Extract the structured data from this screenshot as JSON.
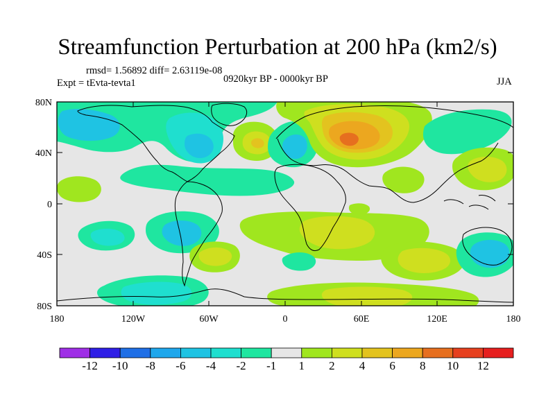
{
  "title": "Streamfunction Perturbation at 200 hPa (km2/s)",
  "stats_line": "rmsd= 1.56892 diff= 2.63119e-08",
  "experiment_line": "Expt = tEvta-tevta1",
  "period_line": "0920kyr BP - 0000kyr BP",
  "season": "JJA",
  "axes": {
    "lat_labels": [
      "80N",
      "40N",
      "0",
      "40S",
      "80S"
    ],
    "lon_labels": [
      "180",
      "120W",
      "60W",
      "0",
      "60E",
      "120E",
      "180"
    ]
  },
  "colorbar": {
    "labels": [
      "-12",
      "-10",
      "-8",
      "-6",
      "-4",
      "-2",
      "-1",
      "1",
      "2",
      "4",
      "6",
      "8",
      "10",
      "12"
    ],
    "colors": [
      "#9f2fe6",
      "#2f1fe6",
      "#1f6fe6",
      "#1fa7ec",
      "#1fc3e3",
      "#1fdfcf",
      "#1fe6a0",
      "#e6e6e6",
      "#a0e61f",
      "#cfdf1f",
      "#e3c31f",
      "#eca71f",
      "#e66f1f",
      "#e6401f",
      "#e61f1f"
    ]
  },
  "field_colors": {
    "ocean": "#e6e6e6",
    "green_neg": "#1fe6a0",
    "cyan_neg": "#1fdfcf",
    "blue_neg": "#1fc3e3",
    "lime_pos": "#a0e61f",
    "olive_pos": "#cfdf1f",
    "yellow_pos": "#e3c31f",
    "orange_pos": "#eca71f",
    "red_pos": "#e66f1f"
  },
  "map_data": {
    "type": "filled-contour",
    "projection": "cylindrical-equidistant",
    "lon_range": [
      -180,
      180
    ],
    "lat_range": [
      -90,
      90
    ],
    "level_breaks": [
      -12,
      -10,
      -8,
      -6,
      -4,
      -2,
      -1,
      1,
      2,
      4,
      6,
      8,
      10,
      12
    ]
  }
}
